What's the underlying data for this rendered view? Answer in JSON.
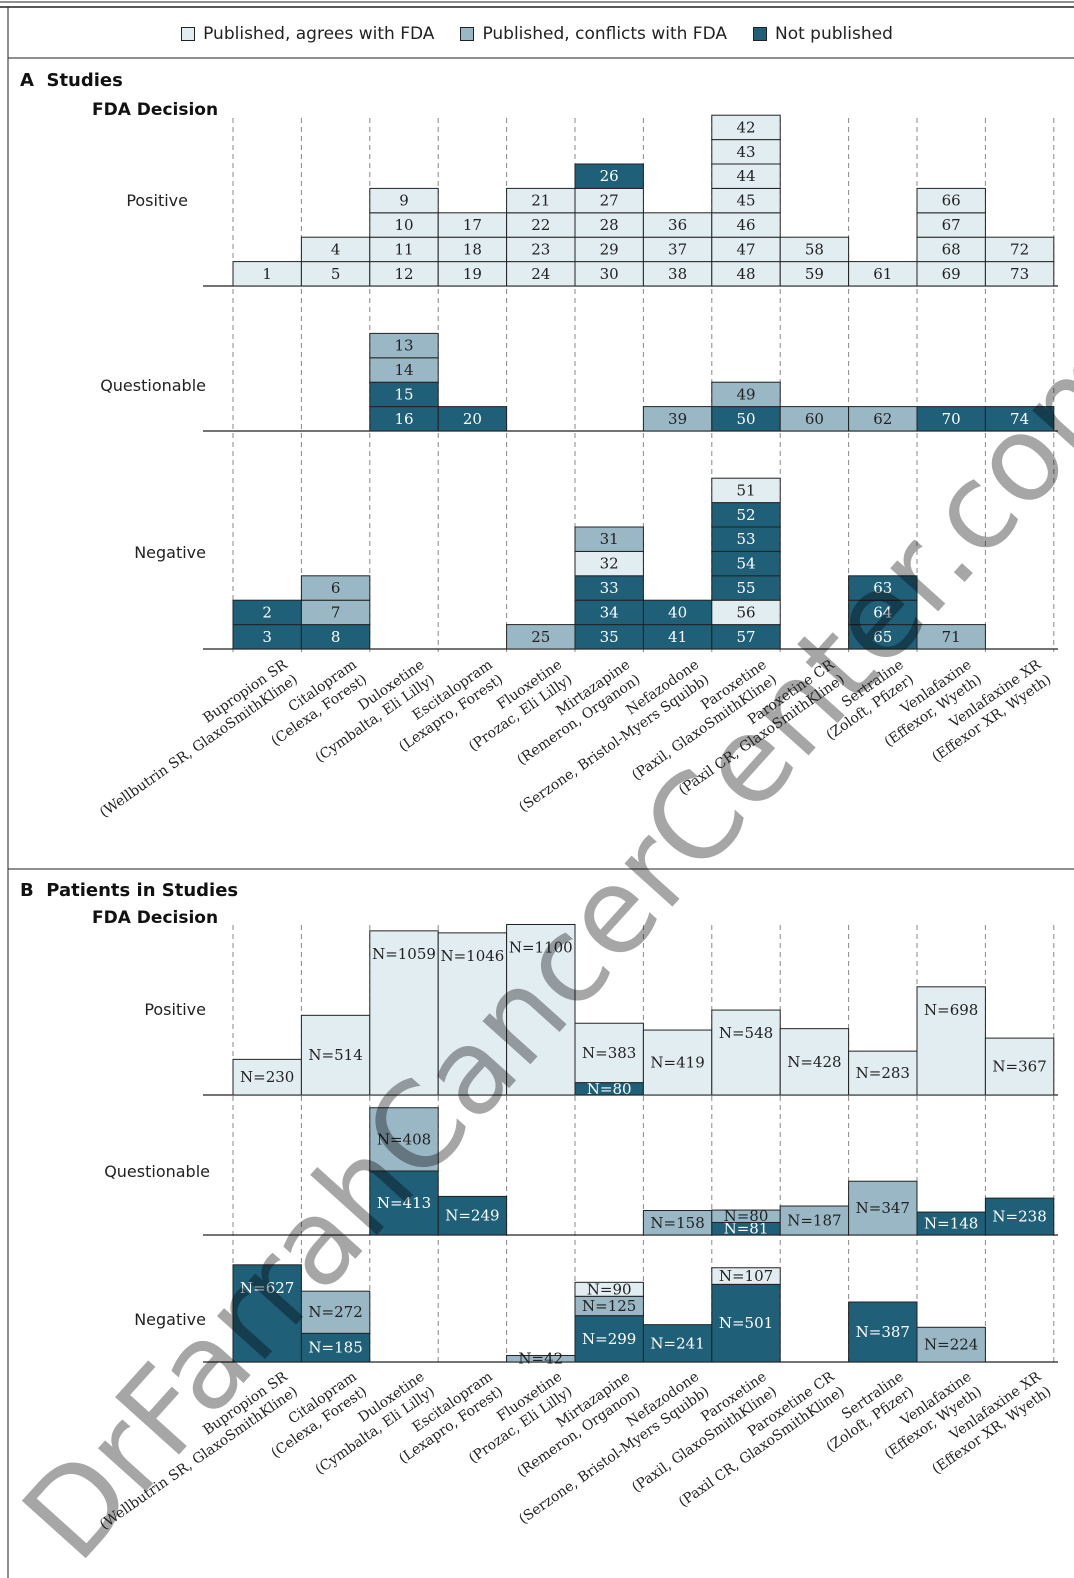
{
  "legend": [
    {
      "name": "Published, agrees with FDA",
      "color": "#e2edf1",
      "key": "agree"
    },
    {
      "name": "Published, conflicts with FDA",
      "color": "#9ab7c6",
      "key": "conflict"
    },
    {
      "name": "Not published",
      "color": "#1f5f78",
      "key": "notpub"
    }
  ],
  "colors": {
    "agree": "#e2edf1",
    "conflict": "#9ab7c6",
    "notpub": "#1f5f78",
    "line": "#222222"
  },
  "watermark": "DrFarrahCancerCenter.com",
  "panel_a": {
    "letter": "A",
    "title": "Studies",
    "subtitle": "FDA Decision"
  },
  "panel_b": {
    "letter": "B",
    "title": "Patients in Studies",
    "subtitle": "FDA Decision"
  },
  "categories": [
    "Positive",
    "Questionable",
    "Negative"
  ],
  "drugs": [
    {
      "name": "Bupropion SR",
      "detail": "(Wellbutrin SR, GlaxoSmithKline)"
    },
    {
      "name": "Citalopram",
      "detail": "(Celexa, Forest)"
    },
    {
      "name": "Duloxetine",
      "detail": "(Cymbalta, Eli Lilly)"
    },
    {
      "name": "Escitalopram",
      "detail": "(Lexapro, Forest)"
    },
    {
      "name": "Fluoxetine",
      "detail": "(Prozac, Eli Lilly)"
    },
    {
      "name": "Mirtazapine",
      "detail": "(Remeron, Organon)"
    },
    {
      "name": "Nefazodone",
      "detail": "(Serzone, Bristol-Myers Squibb)"
    },
    {
      "name": "Paroxetine",
      "detail": "(Paxil, GlaxoSmithKline)"
    },
    {
      "name": "Paroxetine CR",
      "detail": "(Paxil CR, GlaxoSmithKline)"
    },
    {
      "name": "Sertraline",
      "detail": "(Zoloft, Pfizer)"
    },
    {
      "name": "Venlafaxine",
      "detail": "(Effexor, Wyeth)"
    },
    {
      "name": "Venlafaxine XR",
      "detail": "(Effexor XR, Wyeth)"
    }
  ],
  "chart_data": [
    {
      "type": "bar",
      "title": "Studies",
      "ylabel": "FDA Decision",
      "note": "Stacked study boxes per drug; listed bottom to top; status: agree / conflict / notpub",
      "studies": {
        "Positive": [
          [
            [
              "1",
              "agree"
            ]
          ],
          [
            [
              "5",
              "agree"
            ],
            [
              "4",
              "agree"
            ]
          ],
          [
            [
              "12",
              "agree"
            ],
            [
              "11",
              "agree"
            ],
            [
              "10",
              "agree"
            ],
            [
              "9",
              "agree"
            ]
          ],
          [
            [
              "19",
              "agree"
            ],
            [
              "18",
              "agree"
            ],
            [
              "17",
              "agree"
            ]
          ],
          [
            [
              "24",
              "agree"
            ],
            [
              "23",
              "agree"
            ],
            [
              "22",
              "agree"
            ],
            [
              "21",
              "agree"
            ]
          ],
          [
            [
              "30",
              "agree"
            ],
            [
              "29",
              "agree"
            ],
            [
              "28",
              "agree"
            ],
            [
              "27",
              "agree"
            ],
            [
              "26",
              "notpub"
            ]
          ],
          [
            [
              "38",
              "agree"
            ],
            [
              "37",
              "agree"
            ],
            [
              "36",
              "agree"
            ]
          ],
          [
            [
              "48",
              "agree"
            ],
            [
              "47",
              "agree"
            ],
            [
              "46",
              "agree"
            ],
            [
              "45",
              "agree"
            ],
            [
              "44",
              "agree"
            ],
            [
              "43",
              "agree"
            ],
            [
              "42",
              "agree"
            ]
          ],
          [
            [
              "59",
              "agree"
            ],
            [
              "58",
              "agree"
            ]
          ],
          [
            [
              "61",
              "agree"
            ]
          ],
          [
            [
              "69",
              "agree"
            ],
            [
              "68",
              "agree"
            ],
            [
              "67",
              "agree"
            ],
            [
              "66",
              "agree"
            ]
          ],
          [
            [
              "73",
              "agree"
            ],
            [
              "72",
              "agree"
            ]
          ]
        ],
        "Questionable": [
          [],
          [],
          [
            [
              "16",
              "notpub"
            ],
            [
              "15",
              "notpub"
            ],
            [
              "14",
              "conflict"
            ],
            [
              "13",
              "conflict"
            ]
          ],
          [
            [
              "20",
              "notpub"
            ]
          ],
          [],
          [],
          [
            [
              "39",
              "conflict"
            ]
          ],
          [
            [
              "50",
              "notpub"
            ],
            [
              "49",
              "conflict"
            ]
          ],
          [
            [
              "60",
              "conflict"
            ]
          ],
          [
            [
              "62",
              "conflict"
            ]
          ],
          [
            [
              "70",
              "notpub"
            ]
          ],
          [
            [
              "74",
              "notpub"
            ]
          ]
        ],
        "Negative": [
          [
            [
              "3",
              "notpub"
            ],
            [
              "2",
              "notpub"
            ]
          ],
          [
            [
              "8",
              "notpub"
            ],
            [
              "7",
              "conflict"
            ],
            [
              "6",
              "conflict"
            ]
          ],
          [],
          [],
          [
            [
              "25",
              "conflict"
            ]
          ],
          [
            [
              "35",
              "notpub"
            ],
            [
              "34",
              "notpub"
            ],
            [
              "33",
              "notpub"
            ],
            [
              "32",
              "agree"
            ],
            [
              "31",
              "conflict"
            ]
          ],
          [
            [
              "41",
              "notpub"
            ],
            [
              "40",
              "notpub"
            ]
          ],
          [
            [
              "57",
              "notpub"
            ],
            [
              "56",
              "agree"
            ],
            [
              "55",
              "notpub"
            ],
            [
              "54",
              "notpub"
            ],
            [
              "53",
              "notpub"
            ],
            [
              "52",
              "notpub"
            ],
            [
              "51",
              "agree"
            ]
          ],
          [],
          [
            [
              "65",
              "notpub"
            ],
            [
              "64",
              "notpub"
            ],
            [
              "63",
              "notpub"
            ]
          ],
          [
            [
              "71",
              "conflict"
            ]
          ],
          []
        ]
      }
    },
    {
      "type": "bar",
      "title": "Patients in Studies",
      "ylabel": "FDA Decision",
      "note": "Stacked patient-count bars per drug; listed bottom to top",
      "patients": {
        "Positive": [
          [
            [
              230,
              "agree"
            ]
          ],
          [
            [
              514,
              "agree"
            ]
          ],
          [
            [
              1059,
              "agree"
            ]
          ],
          [
            [
              1046,
              "agree"
            ]
          ],
          [
            [
              1100,
              "agree"
            ]
          ],
          [
            [
              80,
              "notpub"
            ],
            [
              383,
              "agree"
            ]
          ],
          [
            [
              419,
              "agree"
            ]
          ],
          [
            [
              548,
              "agree"
            ]
          ],
          [
            [
              428,
              "agree"
            ]
          ],
          [
            [
              283,
              "agree"
            ]
          ],
          [
            [
              698,
              "agree"
            ]
          ],
          [
            [
              367,
              "agree"
            ]
          ]
        ],
        "Questionable": [
          [],
          [],
          [
            [
              413,
              "notpub"
            ],
            [
              408,
              "conflict"
            ]
          ],
          [
            [
              249,
              "notpub"
            ]
          ],
          [],
          [],
          [
            [
              158,
              "conflict"
            ]
          ],
          [
            [
              81,
              "notpub"
            ],
            [
              80,
              "conflict"
            ]
          ],
          [
            [
              187,
              "conflict"
            ]
          ],
          [
            [
              347,
              "conflict"
            ]
          ],
          [
            [
              148,
              "notpub"
            ]
          ],
          [
            [
              238,
              "notpub"
            ]
          ]
        ],
        "Negative": [
          [
            [
              627,
              "notpub"
            ]
          ],
          [
            [
              185,
              "notpub"
            ],
            [
              272,
              "conflict"
            ]
          ],
          [],
          [],
          [
            [
              42,
              "conflict"
            ]
          ],
          [
            [
              299,
              "notpub"
            ],
            [
              125,
              "conflict"
            ],
            [
              90,
              "agree"
            ]
          ],
          [
            [
              241,
              "notpub"
            ]
          ],
          [
            [
              501,
              "notpub"
            ],
            [
              107,
              "agree"
            ]
          ],
          [],
          [
            [
              387,
              "notpub"
            ]
          ],
          [
            [
              224,
              "conflict"
            ]
          ],
          []
        ]
      }
    }
  ]
}
